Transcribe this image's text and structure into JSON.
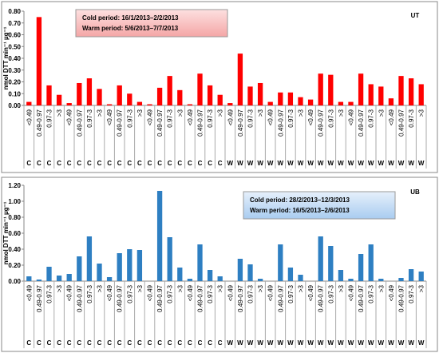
{
  "chart_data": [
    {
      "type": "bar",
      "label": "UT",
      "annotations": [
        "Cold period: 16/1/2013–2/2/2013",
        "Warm period:  5/6/2013–7/7/2013"
      ],
      "y_label": "nmol DTT min⁻¹ µg⁻¹",
      "color": "#ff0000",
      "categories": [
        "<0.49",
        "0.49-0.97",
        "0.97-3",
        ">3",
        "<0.49",
        "0.49-0.97",
        "0.97-3",
        ">3",
        "<0.49",
        "0.49-0.97",
        "0.97-3",
        ">3",
        "<0.49",
        "0.49-0.97",
        "0.97-3",
        ">3",
        "<0.49",
        "0.49-0.97",
        "0.97-3",
        ">3",
        "<0.49",
        "0.49-0.97",
        "0.97-3",
        ">3",
        "<0.49",
        "0.49-0.97",
        "0.97-3",
        ">3",
        "<0.49",
        "0.49-0.97",
        "0.97-3",
        ">3",
        "<0.49",
        "0.49-0.97",
        "0.97-3",
        ">3",
        "<0.49",
        "0.49-0.97",
        "0.97-3",
        ">3"
      ],
      "periods": [
        "C",
        "C",
        "C",
        "C",
        "C",
        "C",
        "C",
        "C",
        "C",
        "C",
        "C",
        "C",
        "C",
        "C",
        "C",
        "C",
        "C",
        "C",
        "C",
        "C",
        "W",
        "W",
        "W",
        "W",
        "W",
        "W",
        "W",
        "W",
        "W",
        "W",
        "W",
        "W",
        "W",
        "W",
        "W",
        "W",
        "W",
        "W",
        "W",
        "W"
      ],
      "values": [
        0.03,
        0.75,
        0.17,
        0.09,
        0.02,
        0.19,
        0.23,
        0.14,
        0.01,
        0.17,
        0.1,
        0.03,
        0.01,
        0.15,
        0.25,
        0.13,
        0.01,
        0.27,
        0.17,
        0.09,
        0.02,
        0.44,
        0.16,
        0.19,
        0.03,
        0.11,
        0.11,
        0.07,
        0.05,
        0.27,
        0.26,
        0.03,
        0.03,
        0.27,
        0.18,
        0.16,
        0.06,
        0.25,
        0.23,
        0.18
      ],
      "ylim": [
        0,
        0.8
      ],
      "yticks": [
        {
          "value": 0,
          "label": "0.00"
        },
        {
          "value": 0.1,
          "label": "0.10"
        },
        {
          "value": 0.2,
          "label": "0.20"
        },
        {
          "value": 0.3,
          "label": "0.30"
        },
        {
          "value": 0.4,
          "label": "0.40"
        },
        {
          "value": 0.5,
          "label": "0.50"
        },
        {
          "value": 0.6,
          "label": "0.60"
        },
        {
          "value": 0.7,
          "label": "0.70"
        },
        {
          "value": 0.8,
          "label": "0.80"
        }
      ],
      "grid": false
    },
    {
      "type": "bar",
      "label": "UB",
      "annotations": [
        "Cold period: 28/2/2013–12/3/2013",
        "Warm period:  16/5/2013–2/6/2013"
      ],
      "y_label": "nmol DTT min⁻¹ µg⁻¹",
      "color": "#2e7fc2",
      "categories": [
        "<0.49",
        "0.49-0.97",
        "0.97-3",
        ">3",
        "<0.49",
        "0.49-0.97",
        "0.97-3",
        ">3",
        "<0.49",
        "0.49-0.97",
        "0.97-3",
        ">3",
        "<0.49",
        "0.49-0.97",
        "0.97-3",
        ">3",
        "<0.49",
        "0.49-0.97",
        "0.97-3",
        ">3",
        "<0.49",
        "0.49-0.97",
        "0.97-3",
        ">3",
        "<0.49",
        "0.49-0.97",
        "0.97-3",
        ">3",
        "<0.49",
        "0.49-0.97",
        "0.97-3",
        ">3",
        "<0.49",
        "0.49-0.97",
        "0.97-3",
        ">3",
        "<0.49",
        "0.49-0.97",
        "0.97-3",
        ">3"
      ],
      "periods": [
        "C",
        "C",
        "C",
        "C",
        "C",
        "C",
        "C",
        "C",
        "C",
        "C",
        "C",
        "C",
        "C",
        "C",
        "C",
        "C",
        "C",
        "C",
        "C",
        "C",
        "W",
        "W",
        "W",
        "W",
        "W",
        "W",
        "W",
        "W",
        "W",
        "W",
        "W",
        "W",
        "W",
        "W",
        "W",
        "W",
        "W",
        "W",
        "W",
        "W"
      ],
      "values": [
        0.06,
        0.02,
        0.18,
        0.07,
        0.09,
        0.31,
        0.56,
        0.22,
        0.05,
        0.35,
        0.4,
        0.39,
        0.0,
        1.13,
        0.55,
        0.17,
        0.03,
        0.46,
        0.14,
        0.06,
        0.0,
        0.28,
        0.21,
        0.03,
        0.0,
        0.46,
        0.17,
        0.08,
        0.0,
        0.56,
        0.44,
        0.14,
        0.03,
        0.34,
        0.46,
        0.03,
        0.0,
        0.04,
        0.15,
        0.12
      ],
      "ylim": [
        0,
        1.2
      ],
      "yticks": [
        {
          "value": 0,
          "label": "0.00"
        },
        {
          "value": 0.2,
          "label": "0.20"
        },
        {
          "value": 0.4,
          "label": "0.40"
        },
        {
          "value": 0.6,
          "label": "0.60"
        },
        {
          "value": 0.8,
          "label": "0.80"
        },
        {
          "value": 1.0,
          "label": "1.00"
        },
        {
          "value": 1.2,
          "label": "1.20"
        }
      ],
      "grid": false
    }
  ]
}
